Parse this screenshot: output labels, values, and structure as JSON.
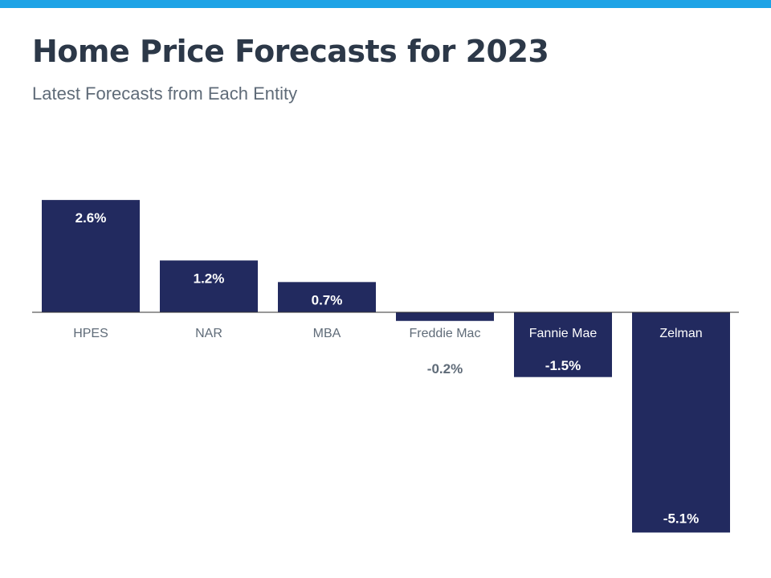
{
  "header": {
    "title": "Home Price Forecasts for 2023",
    "subtitle": "Latest Forecasts from Each Entity"
  },
  "colors": {
    "accent_bar": "#1ea3e6",
    "bar": "#222a5f",
    "title": "#2c3848",
    "subtitle": "#5f6b78",
    "label_dark": "#5f6b78",
    "label_light": "#ffffff",
    "baseline": "#333333"
  },
  "chart_data": {
    "type": "bar",
    "title": "Home Price Forecasts for 2023",
    "subtitle": "Latest Forecasts from Each Entity",
    "categories": [
      "HPES",
      "NAR",
      "MBA",
      "Freddie Mac",
      "Fannie Mae",
      "Zelman"
    ],
    "values": [
      2.6,
      1.2,
      0.7,
      -0.2,
      -1.5,
      -5.1
    ],
    "data_labels": [
      "2.6%",
      "1.2%",
      "0.7%",
      "-0.2%",
      "-1.5%",
      "-5.1%"
    ],
    "xlabel": "",
    "ylabel": "",
    "ylim": [
      -5.1,
      2.6
    ],
    "grid": false,
    "legend": "none"
  }
}
